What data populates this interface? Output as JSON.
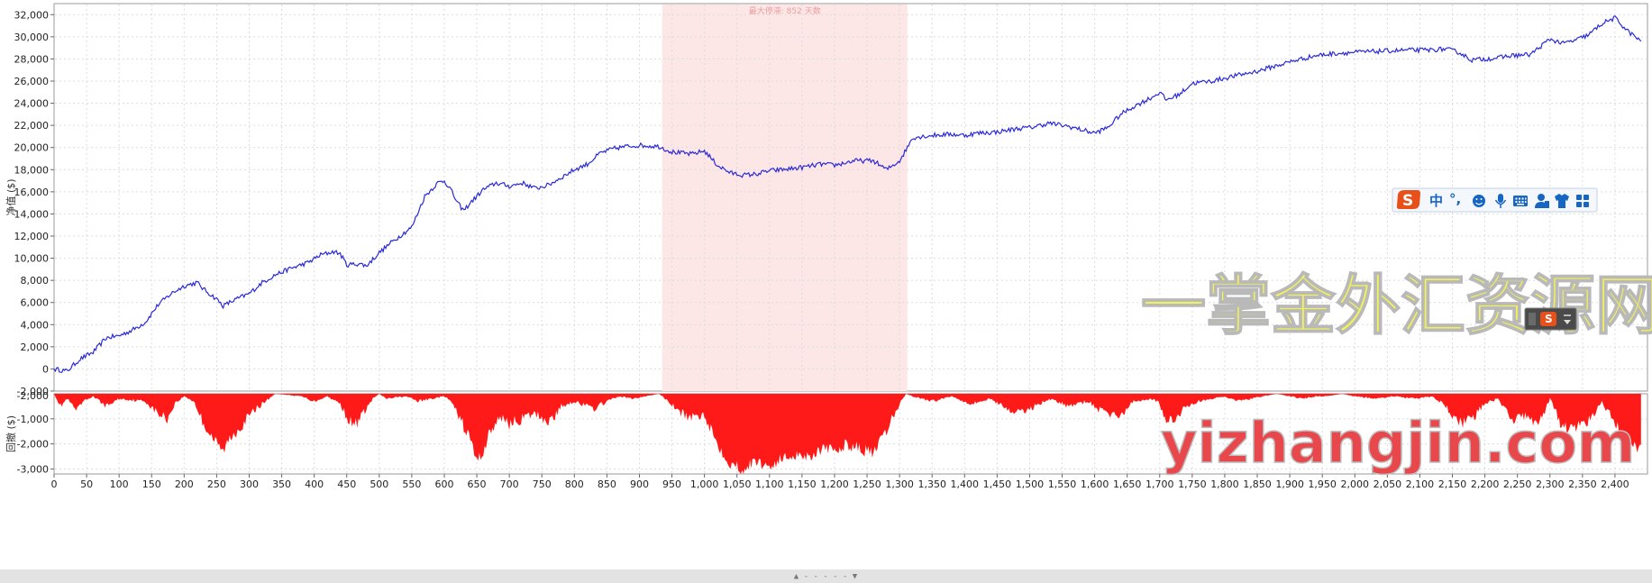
{
  "chart_data": [
    {
      "type": "line",
      "ylabel": "净值 ($)",
      "ylim": [
        -2000,
        33000
      ],
      "yticks": [
        -2000,
        0,
        2000,
        4000,
        6000,
        8000,
        10000,
        12000,
        14000,
        16000,
        18000,
        20000,
        22000,
        24000,
        26000,
        28000,
        30000,
        32000
      ],
      "ytick_labels": [
        "-2,000",
        "0",
        "2,000",
        "4,000",
        "6,000",
        "8,000",
        "10,000",
        "12,000",
        "14,000",
        "16,000",
        "18,000",
        "20,000",
        "22,000",
        "24,000",
        "26,000",
        "28,000",
        "30,000",
        "32,000"
      ],
      "xlim": [
        0,
        2450
      ],
      "grid": true,
      "line_color": "#2a2ad8",
      "series": [
        {
          "x": [
            0,
            20,
            40,
            60,
            80,
            100,
            120,
            140,
            160,
            180,
            200,
            220,
            230,
            250,
            260,
            280,
            300,
            320,
            340,
            360,
            390,
            410,
            430,
            440,
            450,
            470,
            480,
            500,
            520,
            550,
            560,
            570,
            590,
            600,
            610,
            620,
            630,
            640,
            660,
            680,
            700,
            720,
            740,
            760,
            780,
            800,
            820,
            840,
            860,
            880,
            900,
            930,
            950,
            980,
            1000,
            1020,
            1040,
            1060,
            1080,
            1100,
            1120,
            1150,
            1180,
            1200,
            1230,
            1260,
            1280,
            1300,
            1310,
            1320,
            1350,
            1380,
            1400,
            1420,
            1450,
            1480,
            1500,
            1530,
            1560,
            1580,
            1600,
            1620,
            1640,
            1660,
            1690,
            1700,
            1710,
            1730,
            1750,
            1780,
            1810,
            1850,
            1880,
            1910,
            1940,
            1970,
            2000,
            2040,
            2080,
            2110,
            2140,
            2160,
            2180,
            2220,
            2240,
            2270,
            2300,
            2320,
            2340,
            2360,
            2380,
            2400,
            2420,
            2440
          ],
          "y": [
            0,
            -200,
            900,
            1500,
            2800,
            3000,
            3500,
            4200,
            5800,
            6800,
            7500,
            7800,
            7200,
            6300,
            5700,
            6300,
            6800,
            7800,
            8500,
            9000,
            9600,
            10300,
            10600,
            10400,
            9400,
            9500,
            9300,
            10500,
            11500,
            12800,
            14200,
            15600,
            16800,
            17000,
            16200,
            15000,
            14300,
            15000,
            16200,
            16800,
            16500,
            16800,
            16300,
            16600,
            17300,
            18000,
            18500,
            19500,
            19900,
            20100,
            20200,
            20100,
            19600,
            19400,
            19700,
            18400,
            17700,
            17500,
            17600,
            17900,
            18000,
            18200,
            18500,
            18400,
            18800,
            18800,
            18000,
            18800,
            19800,
            20900,
            21100,
            21200,
            21100,
            21300,
            21400,
            21700,
            21800,
            22200,
            21900,
            21600,
            21300,
            21800,
            23000,
            23700,
            24600,
            25000,
            24300,
            24800,
            25800,
            26000,
            26400,
            26900,
            27400,
            27900,
            28300,
            28500,
            28600,
            28700,
            28800,
            28800,
            28900,
            28600,
            27900,
            28100,
            28300,
            28400,
            29800,
            29400,
            29700,
            30200,
            31200,
            31700,
            30500,
            29600
          ]
        }
      ],
      "highlight": {
        "x_start": 935,
        "x_end": 1312,
        "color": "#fde6e6",
        "label": "最大停滞: 852 天数"
      }
    },
    {
      "type": "area",
      "ylabel": "回撤 ($)",
      "ylim": [
        -3200,
        0
      ],
      "yticks": [
        -3000,
        -2000,
        -1000
      ],
      "ytick_labels": [
        "-3,000",
        "-2,000",
        "-1,000"
      ],
      "top_label": "-2,000",
      "xlim": [
        0,
        2450
      ],
      "xticks": [
        0,
        50,
        100,
        150,
        200,
        250,
        300,
        350,
        400,
        450,
        500,
        550,
        600,
        650,
        700,
        750,
        800,
        850,
        900,
        950,
        1000,
        1050,
        1100,
        1150,
        1200,
        1250,
        1300,
        1350,
        1400,
        1450,
        1500,
        1550,
        1600,
        1650,
        1700,
        1750,
        1800,
        1850,
        1900,
        1950,
        2000,
        2050,
        2100,
        2150,
        2200,
        2250,
        2300,
        2350,
        2400
      ],
      "xtick_labels": [
        "0",
        "50",
        "100",
        "150",
        "200",
        "250",
        "300",
        "350",
        "400",
        "450",
        "500",
        "550",
        "600",
        "650",
        "700",
        "750",
        "800",
        "850",
        "900",
        "950",
        "1,000",
        "1,050",
        "1,100",
        "1,150",
        "1,200",
        "1,250",
        "1,300",
        "1,350",
        "1,400",
        "1,450",
        "1,500",
        "1,550",
        "1,600",
        "1,650",
        "1,700",
        "1,750",
        "1,800",
        "1,850",
        "1,900",
        "1,950",
        "2,000",
        "2,050",
        "2,100",
        "2,150",
        "2,200",
        "2,250",
        "2,300",
        "2,350",
        "2,400"
      ],
      "grid": true,
      "fill_color": "#ff1a1a",
      "series": [
        {
          "x": [
            0,
            10,
            20,
            35,
            45,
            60,
            80,
            100,
            140,
            160,
            175,
            185,
            200,
            215,
            230,
            250,
            260,
            270,
            290,
            310,
            330,
            340,
            380,
            400,
            420,
            440,
            450,
            460,
            470,
            490,
            500,
            510,
            540,
            560,
            580,
            600,
            610,
            620,
            640,
            650,
            660,
            670,
            690,
            700,
            720,
            740,
            760,
            770,
            780,
            800,
            830,
            850,
            870,
            890,
            910,
            930,
            940,
            960,
            980,
            1000,
            1020,
            1040,
            1060,
            1080,
            1100,
            1120,
            1140,
            1160,
            1180,
            1200,
            1220,
            1240,
            1260,
            1280,
            1300,
            1310,
            1320,
            1350,
            1380,
            1410,
            1440,
            1480,
            1500,
            1530,
            1560,
            1590,
            1610,
            1640,
            1660,
            1690,
            1700,
            1710,
            1725,
            1740,
            1760,
            1780,
            1800,
            1820,
            1840,
            1860,
            1880,
            1900,
            1920,
            1940,
            1960,
            1980,
            2000,
            2030,
            2060,
            2090,
            2120,
            2140,
            2160,
            2180,
            2200,
            2220,
            2240,
            2260,
            2280,
            2290,
            2300,
            2320,
            2340,
            2360,
            2380,
            2400,
            2420,
            2440
          ],
          "y": [
            0,
            -500,
            -200,
            -700,
            -300,
            -100,
            -500,
            -200,
            -300,
            -800,
            -1000,
            -400,
            -100,
            -300,
            -1200,
            -2000,
            -2300,
            -1800,
            -1200,
            -600,
            -200,
            0,
            -100,
            -300,
            -100,
            -400,
            -900,
            -1300,
            -1000,
            -200,
            0,
            -200,
            -100,
            -300,
            -200,
            -100,
            -300,
            -800,
            -1800,
            -2700,
            -2300,
            -1500,
            -900,
            -1200,
            -1000,
            -800,
            -1100,
            -900,
            -500,
            -300,
            -600,
            -300,
            -100,
            -200,
            -100,
            0,
            -200,
            -700,
            -1000,
            -800,
            -2000,
            -2800,
            -3000,
            -2700,
            -2900,
            -2600,
            -2400,
            -2500,
            -2200,
            -2300,
            -2000,
            -2200,
            -2400,
            -1500,
            -400,
            0,
            -100,
            -300,
            -100,
            -400,
            -200,
            -800,
            -600,
            -200,
            -500,
            -300,
            -700,
            -900,
            -300,
            -200,
            -400,
            -1200,
            -1000,
            -500,
            -300,
            -200,
            -100,
            -300,
            -200,
            -100,
            0,
            -100,
            -200,
            -100,
            -100,
            0,
            -100,
            -200,
            -100,
            -200,
            -100,
            -500,
            -1200,
            -1000,
            -400,
            -200,
            -1000,
            -900,
            -1200,
            -800,
            -200,
            -1400,
            -1300,
            -1100,
            -300,
            -1200,
            -1900,
            -2200
          ]
        }
      ]
    }
  ],
  "watermark": {
    "title": "一掌金外汇资源网",
    "url": "yizhangjin.com"
  },
  "ime_toolbar": {
    "items": [
      "中",
      "°,"
    ],
    "icons": [
      "sogou-logo-icon",
      "emoji-icon",
      "microphone-icon",
      "keyboard-icon",
      "user-icon",
      "shirt-icon",
      "grid-icon"
    ]
  },
  "ime_mini": {
    "logo": "S"
  },
  "resize_handle": {
    "label": "▲ - - - - - ▼"
  }
}
